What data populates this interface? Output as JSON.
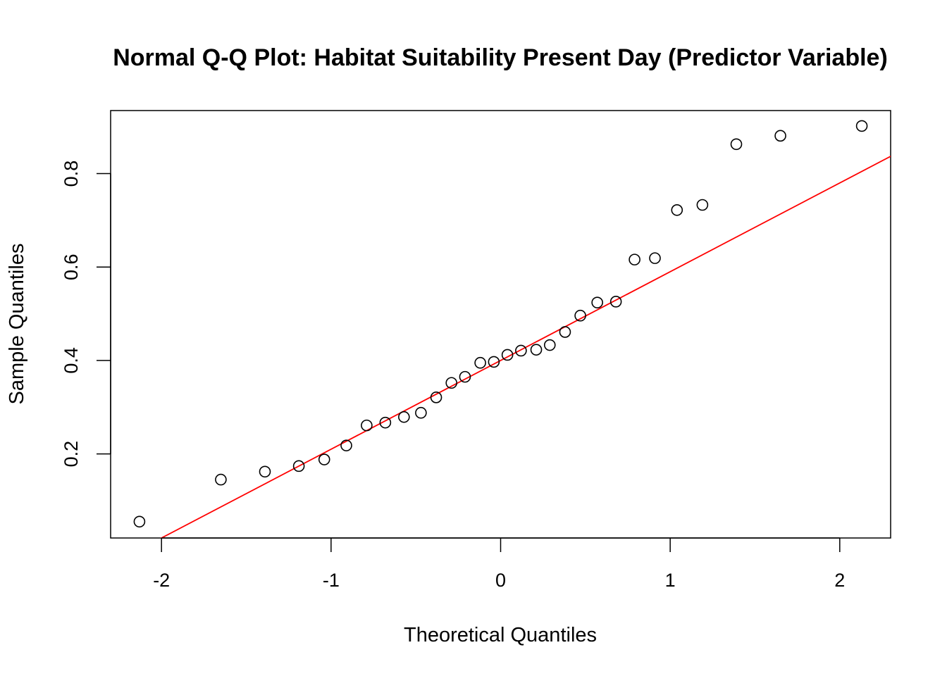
{
  "chart_data": {
    "type": "scatter",
    "title": "Normal Q-Q Plot: Habitat Suitability Present Day (Predictor Variable)",
    "xlabel": "Theoretical Quantiles",
    "ylabel": "Sample Quantiles",
    "xlim": [
      -2.3,
      2.3
    ],
    "ylim": [
      0.02,
      0.935
    ],
    "x_ticks": [
      {
        "value": -2,
        "label": "-2"
      },
      {
        "value": -1,
        "label": "-1"
      },
      {
        "value": 0,
        "label": "0"
      },
      {
        "value": 1,
        "label": "1"
      },
      {
        "value": 2,
        "label": "2"
      }
    ],
    "y_ticks": [
      {
        "value": 0.2,
        "label": "0.2"
      },
      {
        "value": 0.4,
        "label": "0.4"
      },
      {
        "value": 0.6,
        "label": "0.6"
      },
      {
        "value": 0.8,
        "label": "0.8"
      }
    ],
    "grid": false,
    "point_color": "#000000",
    "line_color": "#ff0000",
    "points": [
      {
        "x": -2.13,
        "y": 0.055
      },
      {
        "x": -1.65,
        "y": 0.145
      },
      {
        "x": -1.39,
        "y": 0.162
      },
      {
        "x": -1.19,
        "y": 0.174
      },
      {
        "x": -1.04,
        "y": 0.188
      },
      {
        "x": -0.91,
        "y": 0.218
      },
      {
        "x": -0.79,
        "y": 0.261
      },
      {
        "x": -0.68,
        "y": 0.267
      },
      {
        "x": -0.57,
        "y": 0.279
      },
      {
        "x": -0.47,
        "y": 0.288
      },
      {
        "x": -0.38,
        "y": 0.321
      },
      {
        "x": -0.29,
        "y": 0.352
      },
      {
        "x": -0.21,
        "y": 0.365
      },
      {
        "x": -0.12,
        "y": 0.395
      },
      {
        "x": -0.04,
        "y": 0.397
      },
      {
        "x": 0.04,
        "y": 0.412
      },
      {
        "x": 0.12,
        "y": 0.421
      },
      {
        "x": 0.21,
        "y": 0.423
      },
      {
        "x": 0.29,
        "y": 0.433
      },
      {
        "x": 0.38,
        "y": 0.461
      },
      {
        "x": 0.47,
        "y": 0.496
      },
      {
        "x": 0.57,
        "y": 0.524
      },
      {
        "x": 0.68,
        "y": 0.526
      },
      {
        "x": 0.79,
        "y": 0.616
      },
      {
        "x": 0.91,
        "y": 0.619
      },
      {
        "x": 1.04,
        "y": 0.722
      },
      {
        "x": 1.19,
        "y": 0.733
      },
      {
        "x": 1.39,
        "y": 0.863
      },
      {
        "x": 1.65,
        "y": 0.881
      },
      {
        "x": 2.13,
        "y": 0.902
      }
    ],
    "reference_line": {
      "slope": 0.19,
      "intercept": 0.4
    }
  }
}
